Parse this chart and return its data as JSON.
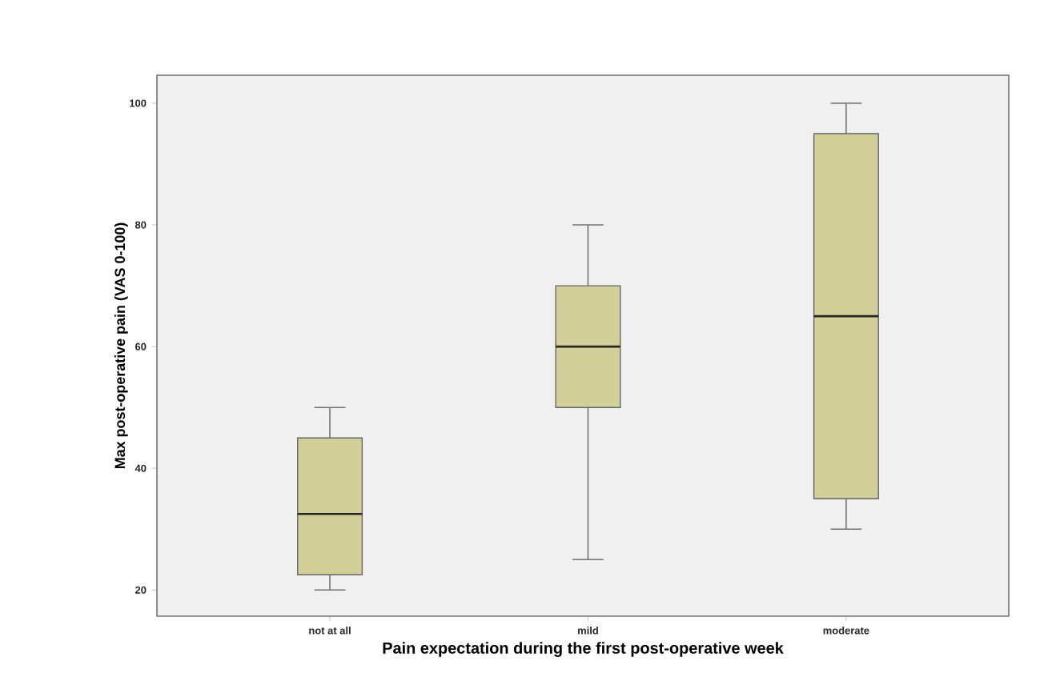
{
  "chart_data": {
    "type": "box",
    "xlabel": "Pain expectation during the first post-operative week",
    "ylabel": "Max post-operative pain (VAS 0-100)",
    "categories": [
      "not at all",
      "mild",
      "moderate"
    ],
    "boxes": [
      {
        "low": 20,
        "q1": 22.5,
        "median": 32.5,
        "q3": 45,
        "high": 50
      },
      {
        "low": 25,
        "q1": 50,
        "median": 60,
        "q3": 70,
        "high": 80
      },
      {
        "low": 30,
        "q1": 35,
        "median": 65,
        "q3": 95,
        "high": 100
      }
    ],
    "color": "#d3cf99",
    "ylim": [
      15.7,
      104.6
    ],
    "yticks": [
      20,
      40,
      60,
      80,
      100
    ],
    "grid": false
  }
}
